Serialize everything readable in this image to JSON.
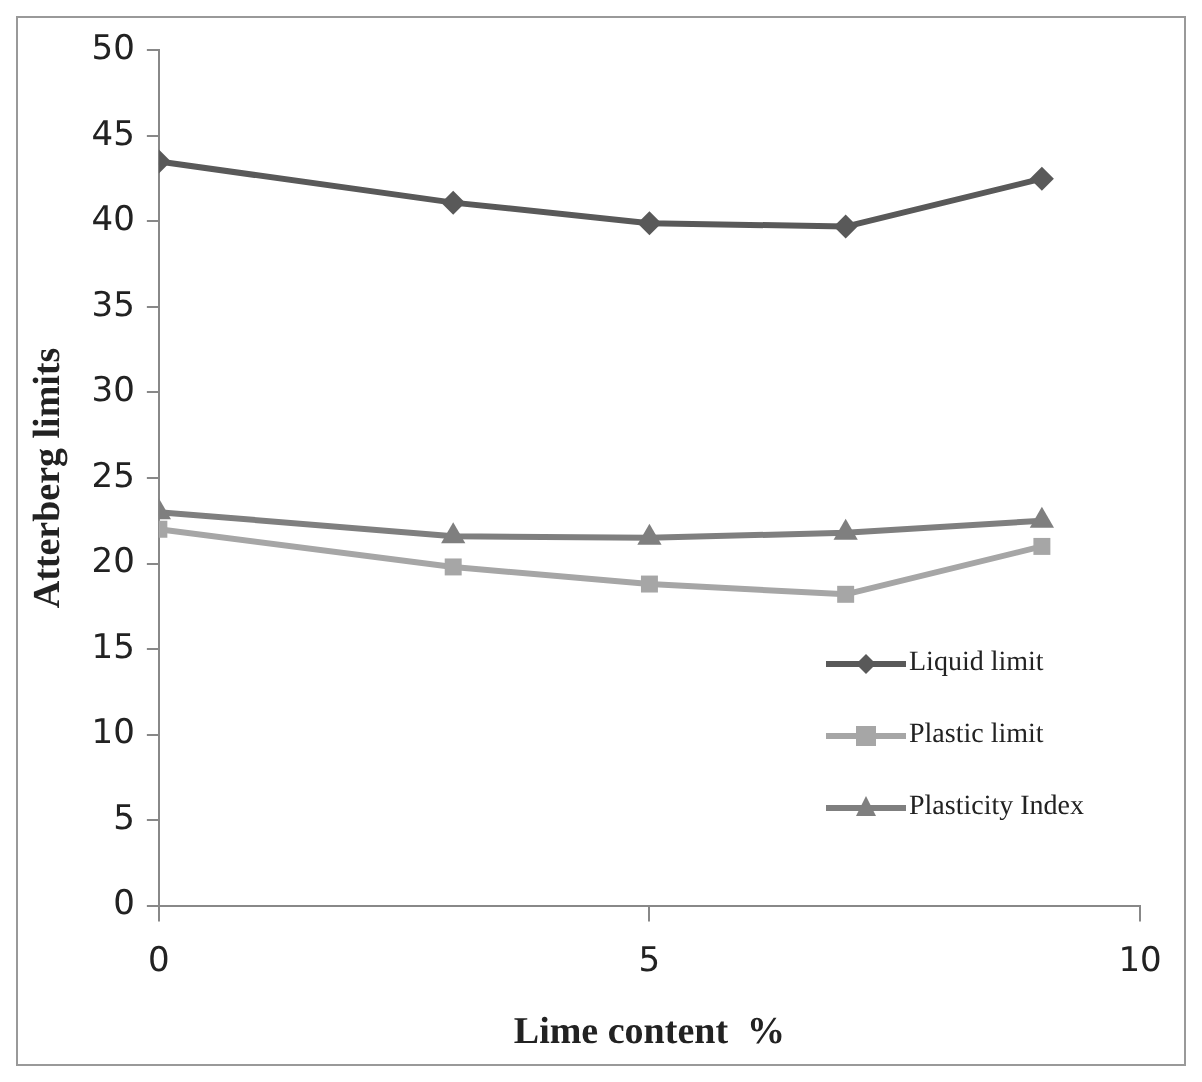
{
  "chart_data": {
    "type": "line",
    "xlabel": "Lime content  %",
    "ylabel": "Atterberg limits",
    "x": [
      0,
      3,
      5,
      7,
      9
    ],
    "series": [
      {
        "name": "Liquid limit",
        "color": "#595959",
        "marker": "diamond",
        "values": [
          43.5,
          41.1,
          39.9,
          39.7,
          42.5
        ]
      },
      {
        "name": "Plastic limit",
        "color": "#a6a6a6",
        "marker": "square",
        "values": [
          22.0,
          19.8,
          18.8,
          18.2,
          21.0
        ]
      },
      {
        "name": "Plasticity Index",
        "color": "#7f7f7f",
        "marker": "triangle",
        "values": [
          23.0,
          21.6,
          21.5,
          21.8,
          22.5
        ]
      }
    ],
    "xlim": [
      0,
      10
    ],
    "xticks": [
      0,
      5,
      10
    ],
    "ylim": [
      0,
      50
    ],
    "yticks": [
      0,
      5,
      10,
      15,
      20,
      25,
      30,
      35,
      40,
      45,
      50
    ],
    "grid": false,
    "legend": "bottom right",
    "line_style": "solid"
  }
}
